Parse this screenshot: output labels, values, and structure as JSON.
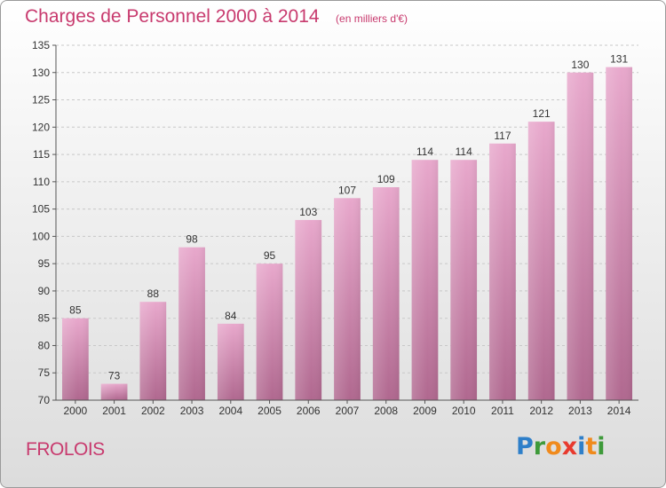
{
  "header": {
    "title": "Charges de Personnel 2000 à 2014",
    "subtitle": "(en milliers d'€)"
  },
  "footer": {
    "commune": "FROLOIS",
    "logo_text": "Proxiti",
    "logo_colors": [
      "#2e7fc9",
      "#3e9a3a",
      "#f08a1c",
      "#e83a2e",
      "#2e7fc9",
      "#f08a1c",
      "#3e9a3a"
    ]
  },
  "colors": {
    "text_accent": "#c83a6e",
    "bar_top": "#e8a8cc",
    "bar_bottom": "#b0688f",
    "grid": "#c8c8c8",
    "axis": "#555555"
  },
  "chart_data": {
    "type": "bar",
    "title": "Charges de Personnel 2000 à 2014",
    "subtitle": "(en milliers d'€)",
    "categories": [
      "2000",
      "2001",
      "2002",
      "2003",
      "2004",
      "2005",
      "2006",
      "2007",
      "2008",
      "2009",
      "2010",
      "2011",
      "2012",
      "2013",
      "2014"
    ],
    "values": [
      85,
      73,
      88,
      98,
      84,
      95,
      103,
      107,
      109,
      114,
      114,
      117,
      121,
      130,
      131
    ],
    "ylim": [
      70,
      135
    ],
    "yticks": [
      70,
      75,
      80,
      85,
      90,
      95,
      100,
      105,
      110,
      115,
      120,
      125,
      130,
      135
    ],
    "grid": true,
    "data_labels": true
  }
}
